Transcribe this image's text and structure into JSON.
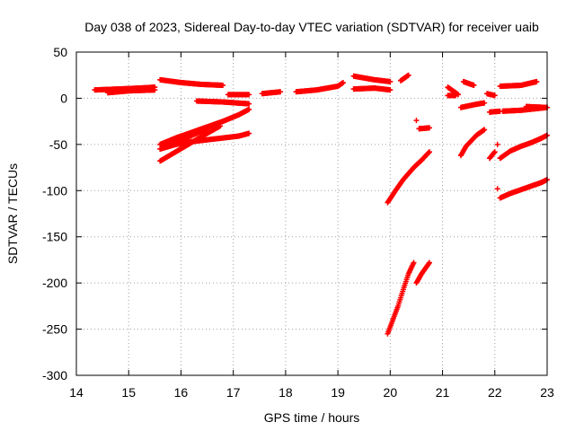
{
  "chart_data": {
    "type": "scatter",
    "title": "Day 038 of 2023, Sidereal Day-to-day VTEC variation (SDTVAR) for receiver uaib",
    "xlabel": "GPS time / hours",
    "ylabel": "SDTVAR / TECUs",
    "xlim": [
      14,
      23
    ],
    "ylim": [
      -300,
      50
    ],
    "xticks": [
      14,
      15,
      16,
      17,
      18,
      19,
      20,
      21,
      22,
      23
    ],
    "yticks": [
      50,
      0,
      -50,
      -100,
      -150,
      -200,
      -250,
      -300
    ],
    "grid": true,
    "marker": "+",
    "color": "#ff0000",
    "tracks": [
      [
        [
          14.35,
          9
        ],
        [
          14.8,
          10
        ],
        [
          15.2,
          11
        ],
        [
          15.5,
          12
        ]
      ],
      [
        [
          14.6,
          6
        ],
        [
          15.0,
          8
        ],
        [
          15.5,
          9
        ]
      ],
      [
        [
          15.6,
          20
        ],
        [
          16.0,
          17
        ],
        [
          16.4,
          15
        ],
        [
          16.8,
          14
        ]
      ],
      [
        [
          16.3,
          -3
        ],
        [
          16.8,
          -4
        ],
        [
          17.3,
          -6
        ]
      ],
      [
        [
          16.9,
          4
        ],
        [
          17.3,
          4
        ]
      ],
      [
        [
          17.55,
          5
        ],
        [
          17.9,
          7
        ]
      ],
      [
        [
          18.2,
          7
        ],
        [
          18.6,
          9
        ],
        [
          19.0,
          13
        ],
        [
          19.1,
          17
        ]
      ],
      [
        [
          19.3,
          24
        ],
        [
          19.7,
          20
        ],
        [
          20.0,
          18
        ]
      ],
      [
        [
          19.3,
          10
        ],
        [
          19.7,
          11
        ],
        [
          20.0,
          9
        ]
      ],
      [
        [
          20.2,
          19
        ],
        [
          20.35,
          25
        ]
      ],
      [
        [
          21.1,
          12
        ],
        [
          21.3,
          4
        ]
      ],
      [
        [
          21.4,
          18
        ],
        [
          21.6,
          14
        ]
      ],
      [
        [
          21.1,
          3
        ],
        [
          21.25,
          3
        ]
      ],
      [
        [
          21.35,
          -10
        ],
        [
          21.6,
          -7
        ],
        [
          21.8,
          -5
        ]
      ],
      [
        [
          21.85,
          5
        ],
        [
          22.0,
          3
        ]
      ],
      [
        [
          22.1,
          13
        ],
        [
          22.5,
          14
        ],
        [
          22.8,
          18
        ]
      ],
      [
        [
          21.9,
          -15
        ],
        [
          22.1,
          -14
        ]
      ],
      [
        [
          22.15,
          -14
        ],
        [
          22.5,
          -13
        ],
        [
          23.0,
          -10
        ]
      ],
      [
        [
          22.6,
          -9
        ],
        [
          23.0,
          -10
        ]
      ],
      [
        [
          15.6,
          -50
        ],
        [
          15.9,
          -43
        ],
        [
          16.2,
          -37
        ],
        [
          16.5,
          -31
        ],
        [
          16.8,
          -25
        ],
        [
          17.1,
          -18
        ],
        [
          17.3,
          -12
        ]
      ],
      [
        [
          15.6,
          -55
        ],
        [
          15.9,
          -50
        ],
        [
          16.2,
          -47
        ],
        [
          16.5,
          -45
        ],
        [
          16.8,
          -43
        ],
        [
          17.1,
          -41
        ],
        [
          17.3,
          -38
        ]
      ],
      [
        [
          15.6,
          -68
        ],
        [
          15.9,
          -58
        ],
        [
          16.2,
          -48
        ],
        [
          16.5,
          -38
        ],
        [
          16.75,
          -30
        ]
      ],
      [
        [
          15.7,
          -52
        ],
        [
          16.0,
          -45
        ],
        [
          16.3,
          -38
        ],
        [
          16.5,
          -33
        ]
      ],
      [
        [
          19.95,
          -113
        ],
        [
          20.1,
          -100
        ],
        [
          20.25,
          -88
        ],
        [
          20.45,
          -75
        ],
        [
          20.6,
          -67
        ]
      ],
      [
        [
          20.6,
          -67
        ],
        [
          20.75,
          -58
        ]
      ],
      [
        [
          19.95,
          -255
        ],
        [
          20.05,
          -240
        ],
        [
          20.15,
          -225
        ],
        [
          20.25,
          -207
        ],
        [
          20.35,
          -190
        ],
        [
          20.45,
          -178
        ]
      ],
      [
        [
          20.5,
          -200
        ],
        [
          20.6,
          -190
        ],
        [
          20.75,
          -178
        ]
      ],
      [
        [
          20.55,
          -33
        ],
        [
          20.75,
          -32
        ]
      ],
      [
        [
          20.5,
          -24
        ]
      ],
      [
        [
          21.35,
          -62
        ],
        [
          21.45,
          -52
        ],
        [
          21.55,
          -46
        ],
        [
          21.65,
          -40
        ],
        [
          21.8,
          -34
        ]
      ],
      [
        [
          21.9,
          -65
        ],
        [
          22.0,
          -58
        ]
      ],
      [
        [
          22.05,
          -50
        ]
      ],
      [
        [
          22.1,
          -65
        ],
        [
          22.3,
          -57
        ],
        [
          22.5,
          -52
        ],
        [
          22.7,
          -48
        ],
        [
          22.9,
          -43
        ],
        [
          23.0,
          -40
        ]
      ],
      [
        [
          22.05,
          -98
        ]
      ],
      [
        [
          22.1,
          -108
        ],
        [
          22.3,
          -103
        ],
        [
          22.5,
          -99
        ],
        [
          22.7,
          -95
        ],
        [
          22.9,
          -91
        ],
        [
          23.0,
          -88
        ]
      ]
    ]
  }
}
